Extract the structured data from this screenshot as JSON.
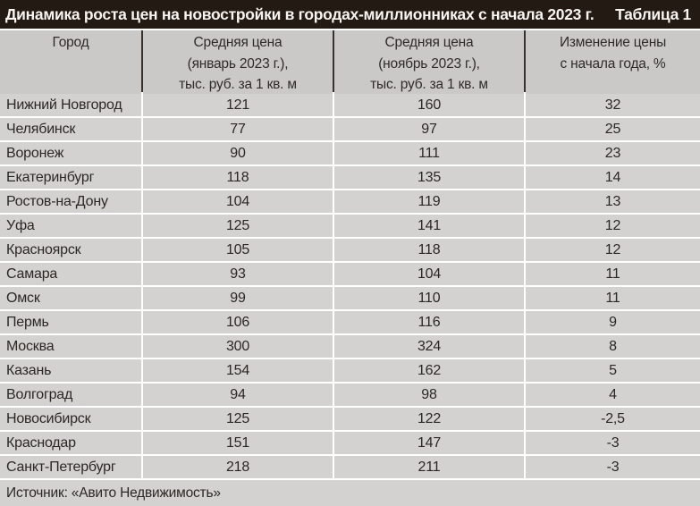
{
  "title": "Динамика роста цен на новостройки в городах-миллионниках с начала 2023 г.",
  "table_label": "Таблица 1",
  "source": "Источник: «Авито Недвижимость»",
  "colors": {
    "title_bar_bg": "#241a14",
    "title_text": "#f7f4f1",
    "header_cell_bg": "#cbc9c7",
    "header_divider": "#39322c",
    "row_cell_bg": "#d4d2d0",
    "cell_text": "#2b2824",
    "gutter": "#ffffff"
  },
  "headers": [
    {
      "lines": [
        "Город"
      ]
    },
    {
      "lines": [
        "Средняя цена",
        "(январь 2023 г.),",
        "тыс. руб. за 1 кв. м"
      ]
    },
    {
      "lines": [
        "Средняя цена",
        "(ноябрь 2023 г.),",
        "тыс. руб. за 1 кв. м"
      ]
    },
    {
      "lines": [
        "Изменение цены",
        "с начала года, %"
      ]
    }
  ],
  "chart_data": {
    "type": "table",
    "title": "Динамика роста цен на новостройки в городах-миллионниках с начала 2023 г.",
    "columns": [
      "Город",
      "Средняя цена (январь 2023 г.), тыс. руб. за 1 кв. м",
      "Средняя цена (ноябрь 2023 г.), тыс. руб. за 1 кв. м",
      "Изменение цены с начала года, %"
    ],
    "rows": [
      [
        "Нижний Новгород",
        "121",
        "160",
        "32"
      ],
      [
        "Челябинск",
        "77",
        "97",
        "25"
      ],
      [
        "Воронеж",
        "90",
        "111",
        "23"
      ],
      [
        "Екатеринбург",
        "118",
        "135",
        "14"
      ],
      [
        "Ростов-на-Дону",
        "104",
        "119",
        "13"
      ],
      [
        "Уфа",
        "125",
        "141",
        "12"
      ],
      [
        "Красноярск",
        "105",
        "118",
        "12"
      ],
      [
        "Самара",
        "93",
        "104",
        "11"
      ],
      [
        "Омск",
        "99",
        "110",
        "11"
      ],
      [
        "Пермь",
        "106",
        "116",
        "9"
      ],
      [
        "Москва",
        "300",
        "324",
        "8"
      ],
      [
        "Казань",
        "154",
        "162",
        "5"
      ],
      [
        "Волгоград",
        "94",
        "98",
        "4"
      ],
      [
        "Новосибирск",
        "125",
        "122",
        "-2,5"
      ],
      [
        "Краснодар",
        "151",
        "147",
        "-3"
      ],
      [
        "Санкт-Петербург",
        "218",
        "211",
        "-3"
      ]
    ]
  }
}
